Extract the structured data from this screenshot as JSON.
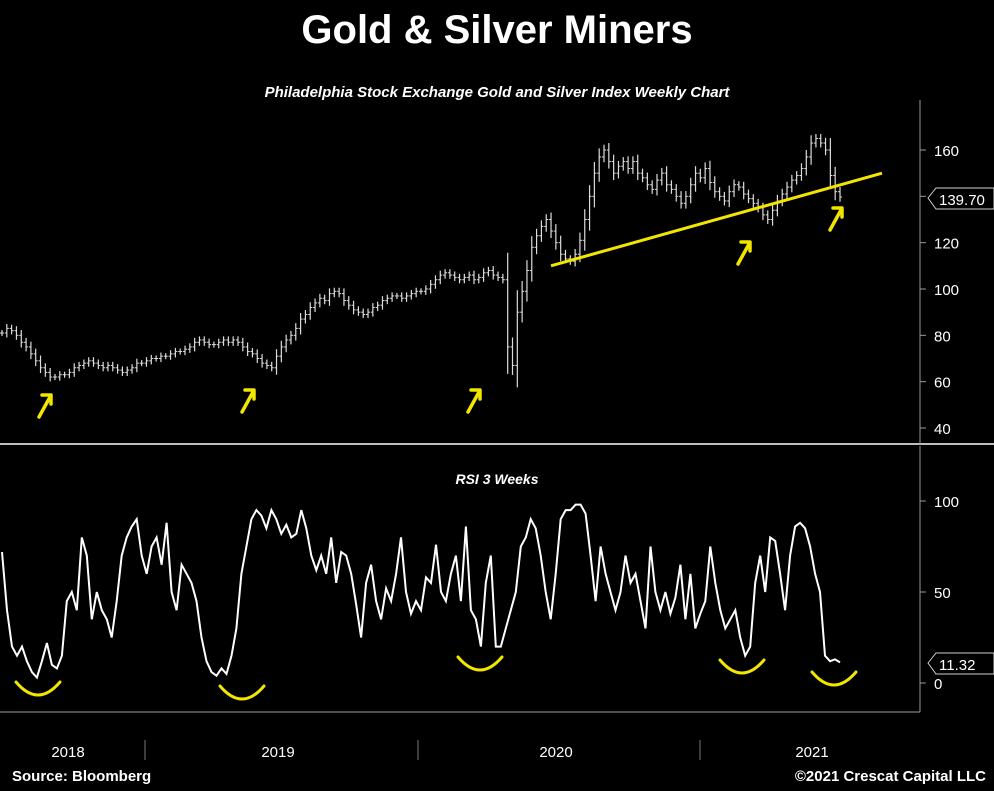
{
  "title": "Gold & Silver Miners",
  "subtitle": "Philadelphia Stock Exchange Gold and Silver Index Weekly Chart",
  "source": "Source: Bloomberg",
  "copyright": "©2021 Crescat Capital LLC",
  "colors": {
    "background": "#000000",
    "price": "#dcdcdc",
    "rsi": "#ffffff",
    "annotation": "#f2e600"
  },
  "chart_data": [
    {
      "type": "ohlc",
      "title": "Philadelphia Stock Exchange Gold and Silver Index Weekly Chart",
      "ylim": [
        35,
        175
      ],
      "yticks": [
        40,
        60,
        80,
        100,
        120,
        140,
        160
      ],
      "last_value_label": "139.70",
      "x_labels": [
        "2018",
        "2019",
        "2020",
        "2021"
      ],
      "x_range": [
        "2017-11",
        "2021-04"
      ],
      "series": [
        {
          "values": [
            81,
            83,
            82,
            80,
            77,
            75,
            72,
            69,
            66,
            64,
            62,
            62,
            63,
            63,
            64,
            66,
            67,
            68,
            69,
            68,
            67,
            66,
            67,
            66,
            65,
            64,
            65,
            66,
            68,
            68,
            69,
            70,
            70,
            71,
            71,
            72,
            73,
            73,
            74,
            75,
            77,
            78,
            77,
            76,
            76,
            77,
            78,
            77,
            78,
            77,
            75,
            73,
            72,
            70,
            68,
            67,
            66,
            71,
            75,
            78,
            80,
            83,
            87,
            89,
            92,
            94,
            96,
            95,
            98,
            99,
            98,
            95,
            93,
            91,
            90,
            89,
            90,
            92,
            93,
            95,
            96,
            97,
            97,
            96,
            97,
            98,
            99,
            99,
            100,
            102,
            104,
            106,
            107,
            106,
            105,
            104,
            105,
            106,
            104,
            105,
            107,
            108,
            106,
            105,
            104,
            75,
            67,
            90,
            99,
            108,
            118,
            123,
            127,
            130,
            125,
            120,
            115,
            113,
            112,
            115,
            121,
            130,
            140,
            150,
            157,
            160,
            155,
            150,
            153,
            155,
            152,
            155,
            150,
            148,
            145,
            143,
            147,
            150,
            145,
            143,
            140,
            137,
            140,
            145,
            150,
            148,
            152,
            146,
            142,
            140,
            138,
            142,
            145,
            144,
            141,
            139,
            137,
            135,
            132,
            130,
            134,
            138,
            141,
            144,
            147,
            149,
            152,
            157,
            163,
            165,
            163,
            160,
            149,
            142,
            139.7
          ]
        }
      ],
      "trendline": {
        "from_value": 110,
        "to_value": 141
      },
      "annotations": [
        "low-arrow-2018",
        "low-arrow-2019",
        "low-arrow-2020",
        "low-arrow-2021a",
        "low-arrow-2021b"
      ]
    },
    {
      "type": "line",
      "title": "RSI 3 Weeks",
      "ylim": [
        -8,
        112
      ],
      "yticks": [
        0,
        50,
        100
      ],
      "last_value_label": "11.32",
      "series": [
        {
          "values": [
            72,
            40,
            20,
            15,
            20,
            12,
            6,
            3,
            12,
            22,
            10,
            8,
            15,
            45,
            50,
            40,
            80,
            70,
            35,
            50,
            40,
            35,
            25,
            45,
            70,
            80,
            86,
            90,
            70,
            60,
            75,
            80,
            65,
            88,
            50,
            40,
            65,
            60,
            55,
            45,
            25,
            12,
            6,
            4,
            8,
            5,
            15,
            30,
            60,
            75,
            90,
            95,
            92,
            85,
            95,
            90,
            82,
            87,
            80,
            82,
            95,
            85,
            70,
            62,
            70,
            60,
            80,
            55,
            72,
            70,
            60,
            43,
            25,
            55,
            65,
            45,
            35,
            52,
            45,
            60,
            80,
            50,
            38,
            45,
            40,
            58,
            55,
            76,
            50,
            45,
            60,
            70,
            45,
            86,
            40,
            35,
            20,
            55,
            70,
            20,
            20,
            30,
            40,
            50,
            75,
            80,
            90,
            85,
            70,
            50,
            35,
            60,
            90,
            95,
            95,
            98,
            98,
            93,
            70,
            45,
            75,
            60,
            50,
            40,
            50,
            70,
            55,
            60,
            45,
            30,
            75,
            50,
            40,
            50,
            38,
            47,
            65,
            35,
            60,
            30,
            38,
            45,
            75,
            55,
            40,
            30,
            35,
            40,
            25,
            15,
            20,
            55,
            70,
            50,
            80,
            78,
            60,
            40,
            70,
            86,
            88,
            85,
            75,
            60,
            50,
            15,
            12,
            13,
            11.32
          ]
        }
      ],
      "annotations": [
        "smile-2018",
        "smile-2019",
        "smile-2020",
        "smile-2021a",
        "smile-2021b"
      ]
    }
  ]
}
